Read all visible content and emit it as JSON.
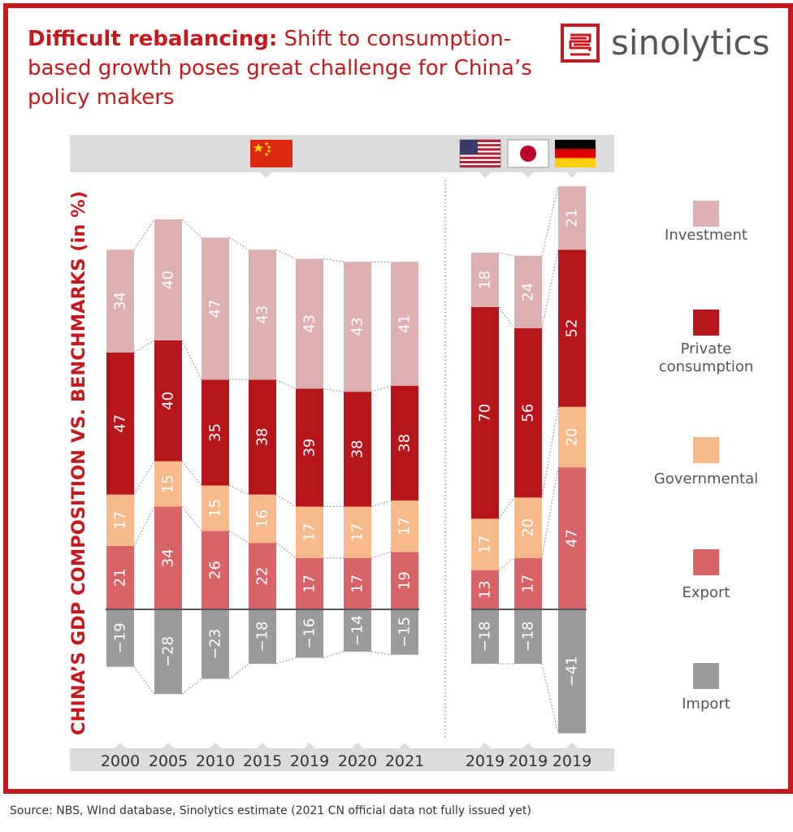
{
  "header": {
    "title_bold": "Difficult rebalancing:",
    "title_rest": " Shift to consumption-based growth poses great challenge for China’s policy makers"
  },
  "brand": {
    "name": "sinolytics"
  },
  "footer": {
    "source": "Source: NBS, WInd database, Sinolytics estimate (2021 CN official data not fully issued yet)"
  },
  "icons": {
    "flag_china": "china-flag-icon",
    "flag_usa": "usa-flag-icon",
    "flag_japan": "japan-flag-icon",
    "flag_germany": "germany-flag-icon",
    "logo": "sinolytics-logo-icon"
  },
  "colors": {
    "brand_red": "#c41a1f",
    "investment": "#dcafb1",
    "private_consumption": "#b5151b",
    "governmental": "#f6b98a",
    "export": "#d96468",
    "import": "#9b9b9b",
    "band": "#dcdcdc"
  },
  "chart_data": {
    "type": "bar",
    "stacked": true,
    "ylabel": "CHINA’S GDP COMPOSITION VS. BENCHMARKS (in %)",
    "categories": [
      "2000",
      "2005",
      "2010",
      "2015",
      "2019",
      "2020",
      "2021",
      "2019",
      "2019",
      "2019"
    ],
    "groups": [
      {
        "flag": "china",
        "categories": [
          0,
          1,
          2,
          3,
          4,
          5,
          6
        ]
      },
      {
        "flag": "usa",
        "categories": [
          7
        ]
      },
      {
        "flag": "japan",
        "categories": [
          8
        ]
      },
      {
        "flag": "germany",
        "categories": [
          9
        ]
      }
    ],
    "series": [
      {
        "name": "Import",
        "key": "import",
        "values": [
          -19,
          -28,
          -23,
          -18,
          -16,
          -14,
          -15,
          -18,
          -18,
          -41
        ]
      },
      {
        "name": "Export",
        "key": "export",
        "values": [
          21,
          34,
          26,
          22,
          17,
          17,
          19,
          13,
          17,
          47
        ]
      },
      {
        "name": "Governmental",
        "key": "governmental",
        "values": [
          17,
          15,
          15,
          16,
          17,
          17,
          17,
          17,
          20,
          20
        ]
      },
      {
        "name": "Private consumption",
        "key": "private_consumption",
        "values": [
          47,
          40,
          35,
          38,
          39,
          38,
          38,
          70,
          56,
          52
        ]
      },
      {
        "name": "Investment",
        "key": "investment",
        "values": [
          34,
          40,
          47,
          43,
          43,
          43,
          41,
          18,
          24,
          21
        ]
      }
    ],
    "legend": [
      "Investment",
      "Private consumption",
      "Governmental",
      "Export",
      "Import"
    ],
    "legend_placement": "right",
    "grid": false
  }
}
